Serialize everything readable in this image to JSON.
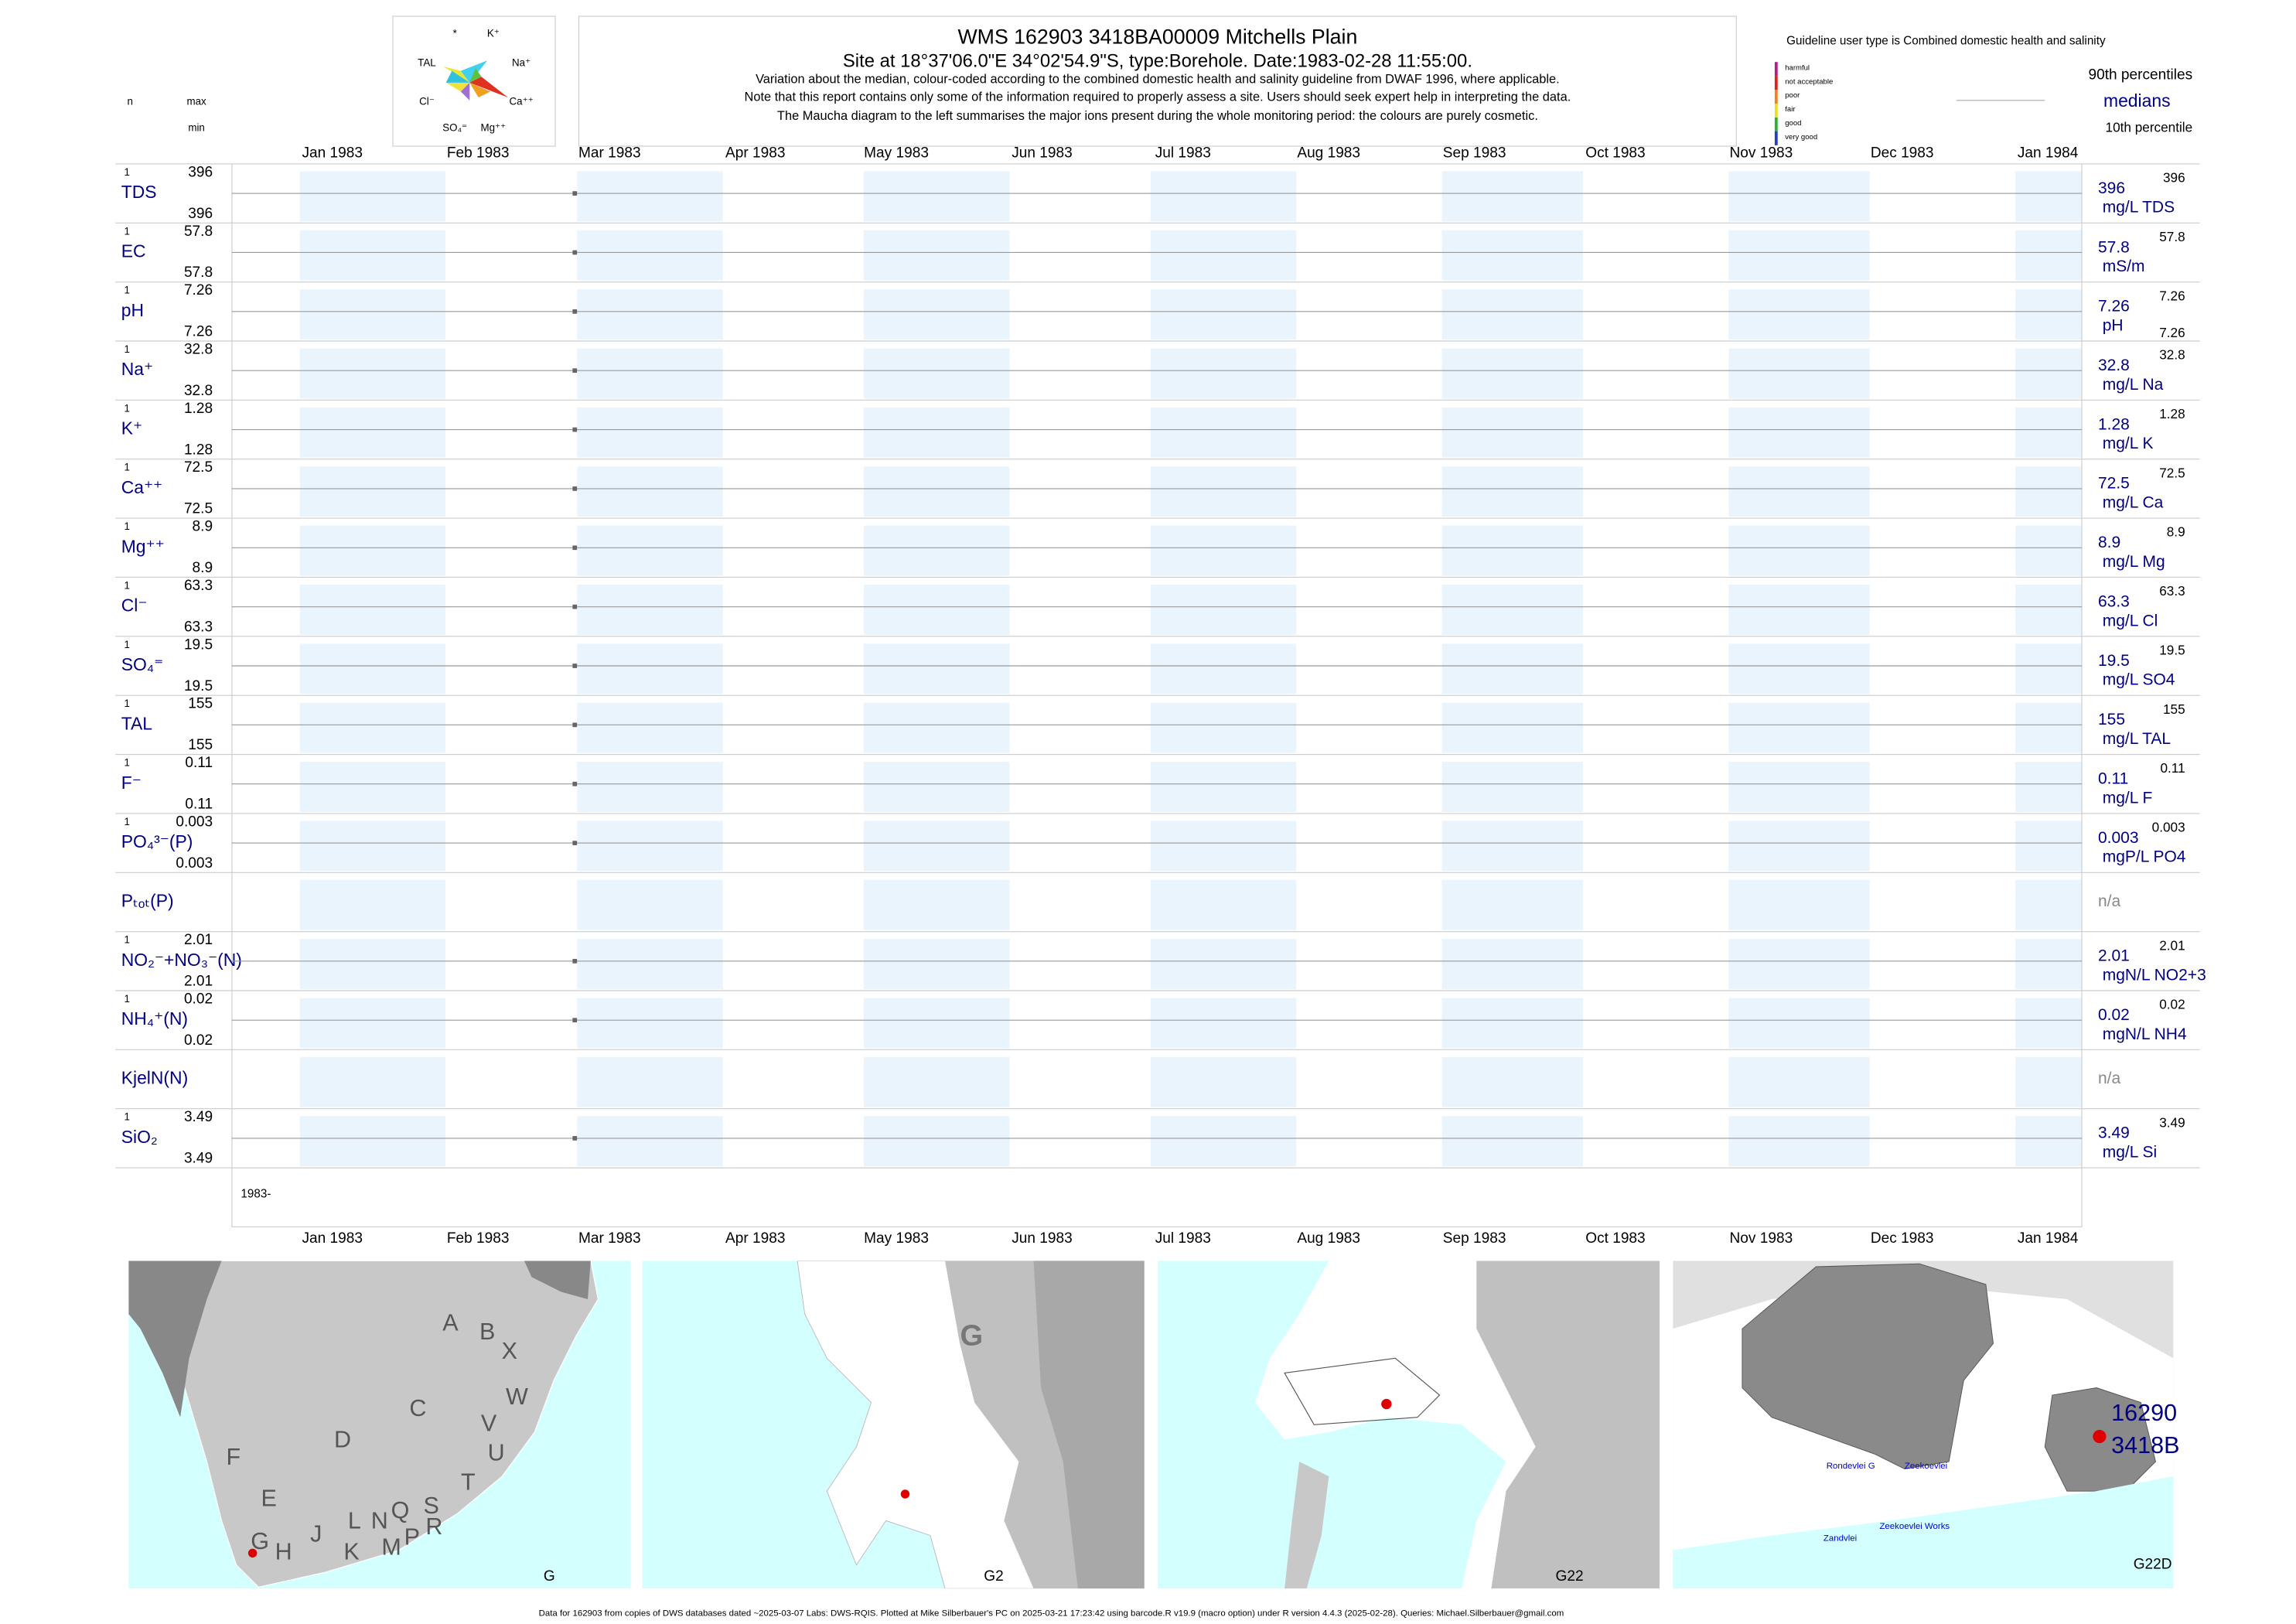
{
  "header": {
    "title": "WMS 162903 3418BA00009 Mitchells Plain",
    "subtitle": "Site at 18°37'06.0\"E 34°02'54.9\"S, type:Borehole. Date:1983-02-28 11:55:00.",
    "notes": [
      "Variation about the median,  colour-coded according to the combined domestic health and salinity guideline from DWAF 1996, where applicable.",
      "Note that this report contains only some of the information required to properly assess a site. Users should seek expert help in interpreting the data.",
      "The Maucha diagram to the left summarises the major ions present during the whole monitoring period: the colours are purely cosmetic."
    ],
    "col_n": "n",
    "col_max": "max",
    "col_min": "min",
    "guideline": "Guideline user type is Combined domestic health and salinity",
    "legend_classes": [
      {
        "label": "harmful",
        "color": "#b0207f"
      },
      {
        "label": "not acceptable",
        "color": "#e02020"
      },
      {
        "label": "poor",
        "color": "#f08020"
      },
      {
        "label": "fair",
        "color": "#e8e020"
      },
      {
        "label": "good",
        "color": "#30b030"
      },
      {
        "label": "very good",
        "color": "#2040c0"
      }
    ],
    "p90_label": "90th percentiles",
    "median_label": "medians",
    "p10_label": "10th percentile"
  },
  "maucha": {
    "labels": [
      "*",
      "K⁺",
      "TAL",
      "Na⁺",
      "Cl⁻",
      "Ca⁺⁺",
      "SO₄⁼",
      "Mg⁺⁺"
    ]
  },
  "months": [
    "Jan 1983",
    "Feb 1983",
    "Mar 1983",
    "Apr 1983",
    "May 1983",
    "Jun 1983",
    "Jul 1983",
    "Aug 1983",
    "Sep 1983",
    "Oct 1983",
    "Nov 1983",
    "Dec 1983",
    "Jan 1984"
  ],
  "rows": [
    {
      "label": "TDS",
      "n": 1,
      "max": 396,
      "min": 396,
      "median": 396,
      "p90": 396,
      "unit": "mg/L TDS"
    },
    {
      "label": "EC",
      "n": 1,
      "max": 57.8,
      "min": 57.8,
      "median": 57.8,
      "p90": 57.8,
      "unit": "mS/m"
    },
    {
      "label": "pH",
      "n": 1,
      "max": 7.26,
      "min": 7.26,
      "median": 7.26,
      "p90": 7.26,
      "p10": 7.26,
      "unit": "pH"
    },
    {
      "label": "Na⁺",
      "n": 1,
      "max": 32.8,
      "min": 32.8,
      "median": 32.8,
      "p90": 32.8,
      "unit": "mg/L Na"
    },
    {
      "label": "K⁺",
      "n": 1,
      "max": 1.28,
      "min": 1.28,
      "median": 1.28,
      "p90": 1.28,
      "unit": "mg/L K"
    },
    {
      "label": "Ca⁺⁺",
      "n": 1,
      "max": 72.5,
      "min": 72.5,
      "median": 72.5,
      "p90": 72.5,
      "unit": "mg/L Ca"
    },
    {
      "label": "Mg⁺⁺",
      "n": 1,
      "max": 8.9,
      "min": 8.9,
      "median": 8.9,
      "p90": 8.9,
      "unit": "mg/L Mg"
    },
    {
      "label": "Cl⁻",
      "n": 1,
      "max": 63.3,
      "min": 63.3,
      "median": 63.3,
      "p90": 63.3,
      "unit": "mg/L Cl"
    },
    {
      "label": "SO₄⁼",
      "n": 1,
      "max": 19.5,
      "min": 19.5,
      "median": 19.5,
      "p90": 19.5,
      "unit": "mg/L SO4"
    },
    {
      "label": "TAL",
      "n": 1,
      "max": 155,
      "min": 155,
      "median": 155,
      "p90": 155,
      "unit": "mg/L TAL"
    },
    {
      "label": "F⁻",
      "n": 1,
      "max": 0.11,
      "min": 0.11,
      "median": 0.11,
      "p90": 0.11,
      "unit": "mg/L F"
    },
    {
      "label": "PO₄³⁻(P)",
      "n": 1,
      "max": 0.003,
      "min": 0.003,
      "median": 0.003,
      "p90": 0.003,
      "unit": "mgP/L PO4"
    },
    {
      "label": "Pₜₒₜ(P)",
      "status": "n/a"
    },
    {
      "label": "NO₂⁻+NO₃⁻(N)",
      "n": 1,
      "max": 2.01,
      "min": 2.01,
      "median": 2.01,
      "p90": 2.01,
      "unit": "mgN/L NO2+3"
    },
    {
      "label": "NH₄⁺(N)",
      "n": 1,
      "max": 0.02,
      "min": 0.02,
      "median": 0.02,
      "p90": 0.02,
      "unit": "mgN/L NH4"
    },
    {
      "label": "KjelN(N)",
      "status": "n/a"
    },
    {
      "label": "SiO₂",
      "n": 1,
      "max": 3.49,
      "min": 3.49,
      "median": 3.49,
      "p90": 3.49,
      "unit": "mg/L Si"
    }
  ],
  "x_axis_start": "1983-",
  "maps": [
    {
      "label": "G",
      "regions": [
        "A",
        "B",
        "X",
        "C",
        "W",
        "D",
        "V",
        "U",
        "F",
        "E",
        "T",
        "S",
        "R",
        "Q",
        "L",
        "N",
        "M",
        "P",
        "J",
        "K",
        "H",
        "G"
      ]
    },
    {
      "label": "G2",
      "regions": [
        "G"
      ]
    },
    {
      "label": "G22",
      "regions": []
    },
    {
      "label": "G22D",
      "regions": [
        "16290",
        "3418B",
        "Rondevlei G",
        "Zeekoevlei",
        "Zeekoevlei Works",
        "Zandvlei"
      ]
    }
  ],
  "footer": "Data for 162903 from copies of DWS databases dated ~2025-03-07 Labs: DWS-RQIS. Plotted at Mike Silberbauer's PC on 2025-03-21 17:23:42 using barcode.R v19.9 (macro option) under R version 4.4.3 (2025-02-28). Queries: Michael.Silberbauer@gmail.com"
}
